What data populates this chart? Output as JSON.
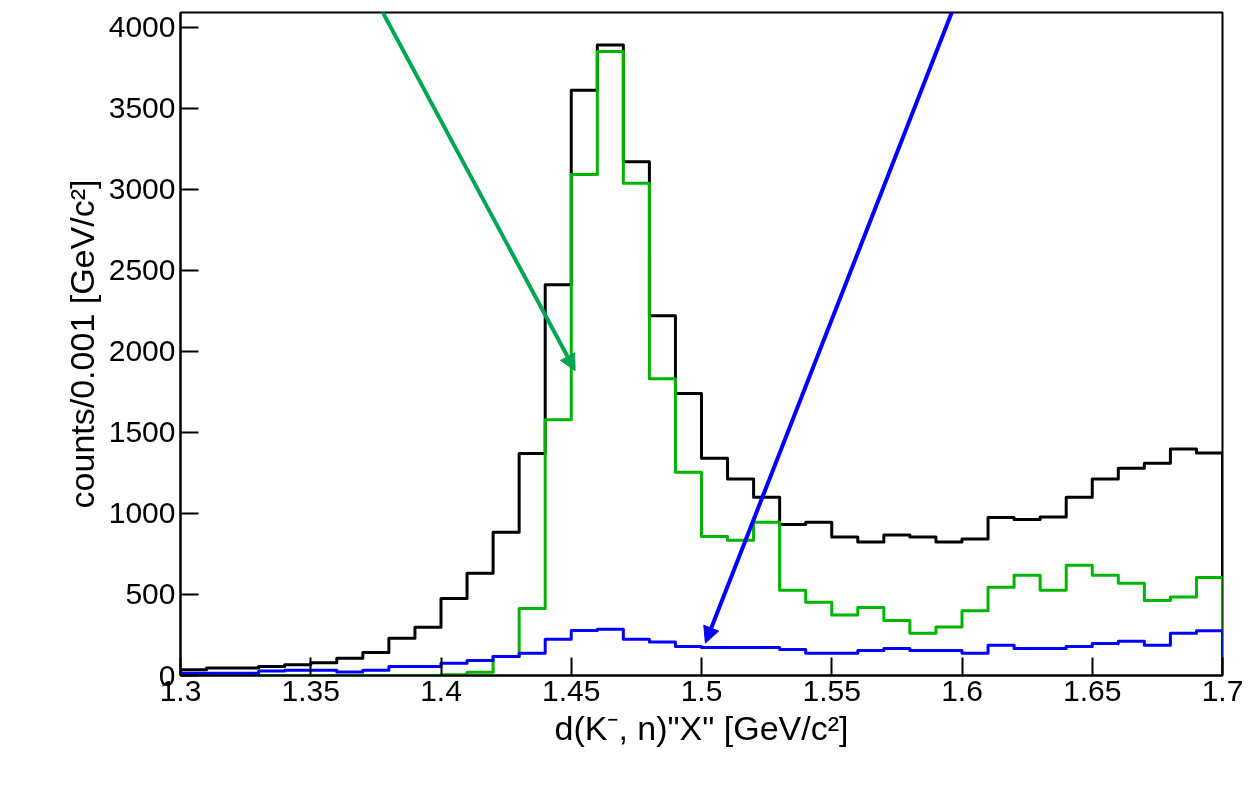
{
  "chart_data": {
    "type": "histogram",
    "xlabel": "d(K⁻, n)\"X\" [GeV/c²]",
    "ylabel": "counts/0.001 [GeV/c²]",
    "bins": [
      1.3,
      1.31,
      1.32,
      1.33,
      1.34,
      1.35,
      1.36,
      1.37,
      1.38,
      1.39,
      1.4,
      1.41,
      1.42,
      1.43,
      1.44,
      1.45,
      1.46,
      1.47,
      1.48,
      1.49,
      1.5,
      1.51,
      1.52,
      1.53,
      1.54,
      1.55,
      1.56,
      1.57,
      1.58,
      1.59,
      1.6,
      1.61,
      1.62,
      1.63,
      1.64,
      1.65,
      1.66,
      1.67,
      1.68,
      1.69,
      1.7
    ],
    "series": [
      {
        "color": "#000000",
        "values": [
          35,
          47,
          47,
          56,
          66,
          78,
          107,
          142,
          230,
          298,
          475,
          631,
          883,
          1370,
          2410,
          3610,
          3890,
          3170,
          2220,
          1740,
          1340,
          1212,
          1100,
          932,
          945,
          855,
          823,
          867,
          855,
          823,
          842,
          975,
          963,
          978,
          1100,
          1212,
          1278,
          1310,
          1398,
          1373
        ]
      },
      {
        "color": "#00b400",
        "values": [
          0,
          0,
          0,
          0,
          0,
          0,
          0,
          0,
          0,
          0,
          5,
          20,
          117,
          413,
          1577,
          3090,
          3850,
          3037,
          1830,
          1254,
          858,
          835,
          946,
          526,
          452,
          373,
          420,
          340,
          260,
          299,
          400,
          544,
          618,
          526,
          680,
          618,
          569,
          463,
          484,
          605
        ]
      },
      {
        "color": "#0000ff",
        "values": [
          14,
          14,
          14,
          27,
          33,
          33,
          22,
          33,
          56,
          56,
          76,
          93,
          117,
          138,
          224,
          278,
          286,
          224,
          207,
          179,
          173,
          173,
          173,
          160,
          137,
          137,
          154,
          167,
          154,
          154,
          137,
          186,
          167,
          167,
          179,
          198,
          212,
          186,
          260,
          276
        ]
      }
    ],
    "xlim": [
      1.3,
      1.7
    ],
    "xticks": [
      1.3,
      1.35,
      1.4,
      1.45,
      1.5,
      1.55,
      1.6,
      1.65,
      1.7
    ],
    "ylim": [
      0,
      4090
    ],
    "yticks": [
      0,
      500,
      1000,
      1500,
      2000,
      2500,
      3000,
      3500,
      4000
    ],
    "line_style": "solid"
  }
}
